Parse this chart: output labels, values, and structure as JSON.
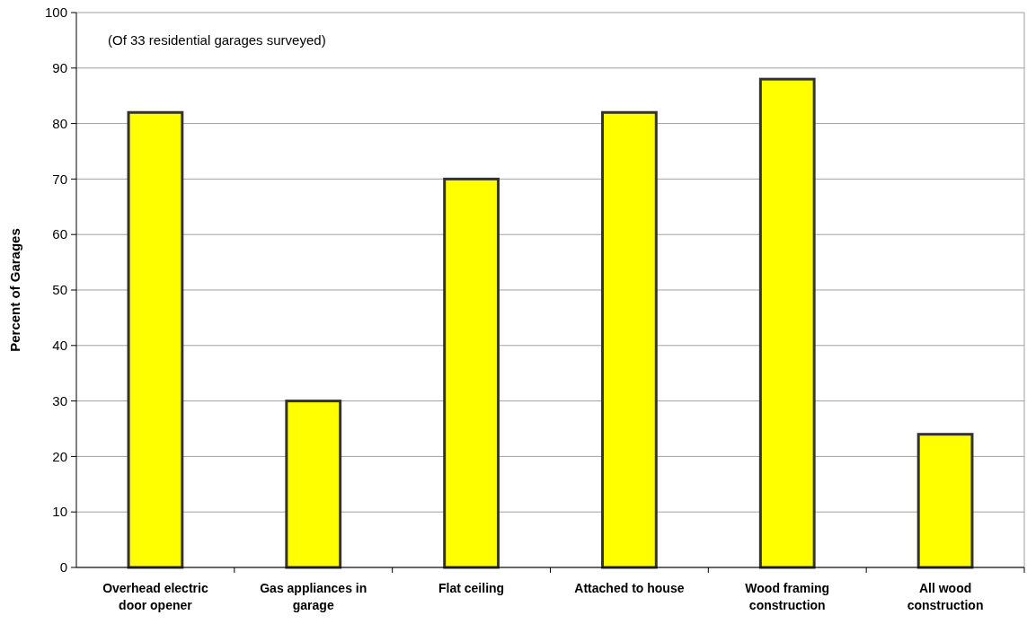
{
  "chart_data": {
    "type": "bar",
    "ylabel": "Percent of Garages",
    "categories": [
      "Overhead electric door opener",
      "Gas appliances in garage",
      "Flat ceiling",
      "Attached to house",
      "Wood framing construction",
      "All wood construction"
    ],
    "values": [
      82,
      30,
      70,
      82,
      88,
      24
    ],
    "color": "#ffff00",
    "ylim": [
      0,
      100
    ],
    "yticks": [
      0,
      10,
      20,
      30,
      40,
      50,
      60,
      70,
      80,
      90,
      100
    ],
    "grid": "y",
    "annotations": [
      "(Of 33 residential garages surveyed)"
    ]
  }
}
